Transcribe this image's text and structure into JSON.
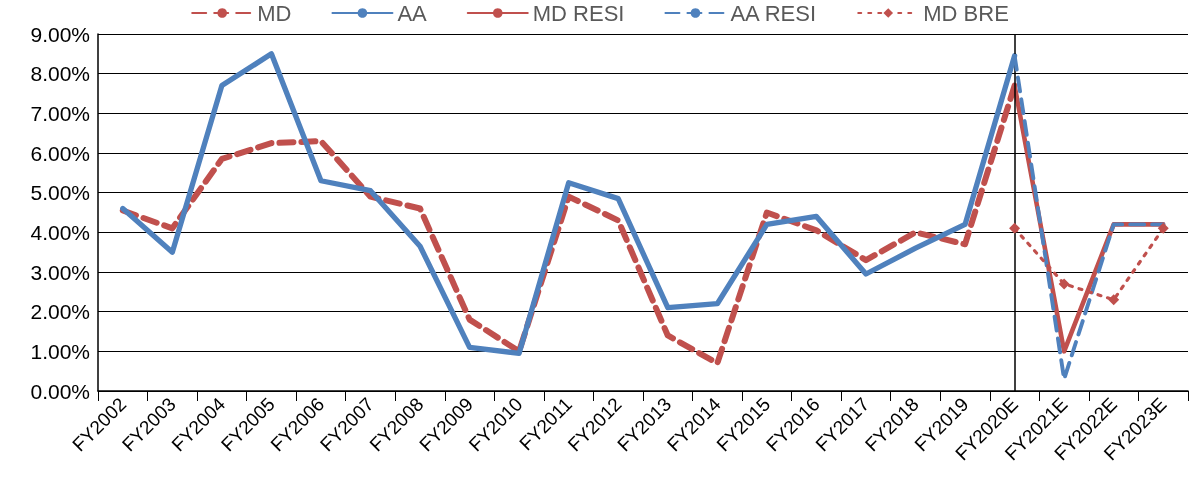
{
  "chart_data": {
    "type": "line",
    "categories": [
      "FY2002",
      "FY2003",
      "FY2004",
      "FY2005",
      "FY2006",
      "FY2007",
      "FY2008",
      "FY2009",
      "FY2010",
      "FY2011",
      "FY2012",
      "FY2013",
      "FY2014",
      "FY2015",
      "FY2016",
      "FY2017",
      "FY2018",
      "FY2019",
      "FY2020E",
      "FY2021E",
      "FY2022E",
      "FY2023E"
    ],
    "series": [
      {
        "name": "MD",
        "color": "#c0504d",
        "line_style": "dashed",
        "marker": "none",
        "values": [
          4.55,
          4.1,
          5.85,
          6.25,
          6.3,
          4.9,
          4.6,
          1.8,
          1.0,
          4.9,
          4.3,
          1.4,
          0.7,
          4.5,
          4.05,
          3.3,
          4.0,
          3.7,
          7.7,
          null,
          null,
          null
        ]
      },
      {
        "name": "AA",
        "color": "#4f81bd",
        "line_style": "solid",
        "marker": "none",
        "values": [
          4.6,
          3.5,
          7.7,
          8.5,
          5.3,
          5.05,
          3.65,
          1.1,
          0.95,
          5.25,
          4.85,
          2.1,
          2.2,
          4.2,
          4.4,
          2.95,
          3.6,
          4.2,
          8.45,
          null,
          null,
          null
        ]
      },
      {
        "name": "MD RESI",
        "color": "#c0504d",
        "line_style": "solid",
        "marker": "none",
        "values": [
          null,
          null,
          null,
          null,
          null,
          null,
          null,
          null,
          null,
          null,
          null,
          null,
          null,
          null,
          null,
          null,
          null,
          null,
          7.7,
          1.0,
          4.2,
          4.2
        ]
      },
      {
        "name": "AA RESI",
        "color": "#4f81bd",
        "line_style": "dashed",
        "marker": "none",
        "values": [
          null,
          null,
          null,
          null,
          null,
          null,
          null,
          null,
          null,
          null,
          null,
          null,
          null,
          null,
          null,
          null,
          null,
          null,
          8.45,
          0.3,
          4.2,
          4.2
        ]
      },
      {
        "name": "MD BRE",
        "color": "#c0504d",
        "line_style": "dotted",
        "marker": "diamond",
        "values": [
          null,
          null,
          null,
          null,
          null,
          null,
          null,
          null,
          null,
          null,
          null,
          null,
          null,
          null,
          null,
          null,
          null,
          null,
          4.1,
          2.7,
          2.3,
          4.1
        ]
      }
    ],
    "ylim": [
      0,
      9
    ],
    "yticks": [
      {
        "value": 0,
        "label": "0.00%"
      },
      {
        "value": 1,
        "label": "1.00%"
      },
      {
        "value": 2,
        "label": "2.00%"
      },
      {
        "value": 3,
        "label": "3.00%"
      },
      {
        "value": 4,
        "label": "4.00%"
      },
      {
        "value": 5,
        "label": "5.00%"
      },
      {
        "value": 6,
        "label": "6.00%"
      },
      {
        "value": 7,
        "label": "7.00%"
      },
      {
        "value": 8,
        "label": "8.00%"
      },
      {
        "value": 9,
        "label": "9.00%"
      }
    ],
    "grid": "y",
    "legend": "top",
    "ref_lines": [
      {
        "axis": "x",
        "value": "FY2020E",
        "color": "#000000"
      }
    ]
  }
}
